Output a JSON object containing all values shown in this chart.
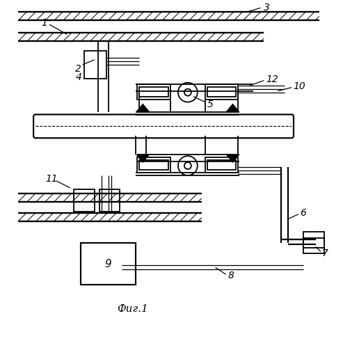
{
  "bg_color": "#ffffff",
  "fig_label": "Фиг.1",
  "lw": 1.3
}
